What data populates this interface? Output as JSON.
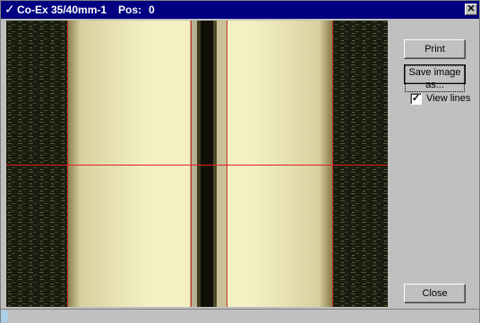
{
  "window": {
    "title": "Co-Ex 35/40mm-1",
    "pos_label": "Pos:",
    "pos_value": "0",
    "title_icon": "check-icon",
    "close_glyph": "✕"
  },
  "controls": {
    "print_label": "Print",
    "save_label": "Save image as...",
    "view_lines_label": "View lines",
    "view_lines_checked": true,
    "close_label": "Close"
  },
  "colors": {
    "title_bar": "#000080",
    "reticle_line": "#e02020",
    "face": "#c0c0c0"
  }
}
